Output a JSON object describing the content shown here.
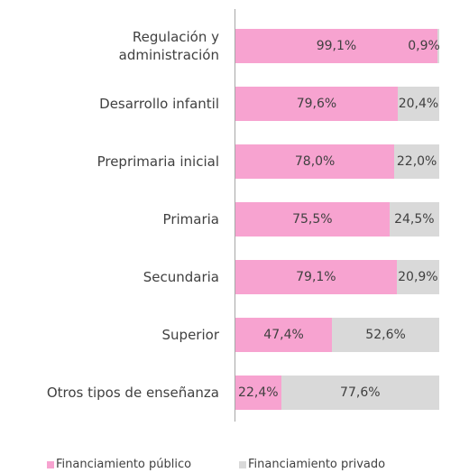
{
  "chart_data": {
    "type": "bar",
    "orientation": "horizontal",
    "stacked": true,
    "categories": [
      "Regulación y\nadministración",
      "Desarrollo infantil",
      "Preprimaria inicial",
      "Primaria",
      "Secundaria",
      "Superior",
      "Otros tipos de enseñanza"
    ],
    "series": [
      {
        "name": "Financiamiento público",
        "color": "#f7a3d0",
        "values": [
          99.1,
          79.6,
          78.0,
          75.5,
          79.1,
          47.4,
          22.4
        ],
        "value_labels": [
          "99,1%",
          "79,6%",
          "78,0%",
          "75,5%",
          "79,1%",
          "47,4%",
          "22,4%"
        ]
      },
      {
        "name": "Financiamiento privado",
        "color": "#d9d9d9",
        "values": [
          0.9,
          20.4,
          22.0,
          24.5,
          20.9,
          52.6,
          77.6
        ],
        "value_labels": [
          "0,9%",
          "20,4%",
          "22,0%",
          "24,5%",
          "20,9%",
          "52,6%",
          "77,6%"
        ]
      }
    ]
  }
}
